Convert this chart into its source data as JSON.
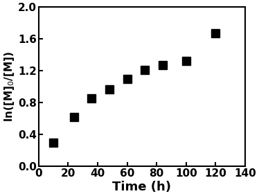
{
  "x": [
    10,
    24,
    36,
    48,
    60,
    72,
    84,
    100,
    120
  ],
  "y": [
    0.3,
    0.62,
    0.85,
    0.97,
    1.1,
    1.21,
    1.27,
    1.32,
    1.67
  ],
  "xlabel": "Time (h)",
  "ylabel": "ln([M]$_0$/[M])",
  "xlim": [
    0,
    140
  ],
  "ylim": [
    0.0,
    2.0
  ],
  "xticks": [
    0,
    20,
    40,
    60,
    80,
    100,
    120,
    140
  ],
  "yticks": [
    0.0,
    0.4,
    0.8,
    1.2,
    1.6,
    2.0
  ],
  "marker": "s",
  "marker_color": "black",
  "marker_size": 8,
  "background_color": "#ffffff",
  "tick_labelsize": 11,
  "xlabel_fontsize": 13,
  "ylabel_fontsize": 11
}
